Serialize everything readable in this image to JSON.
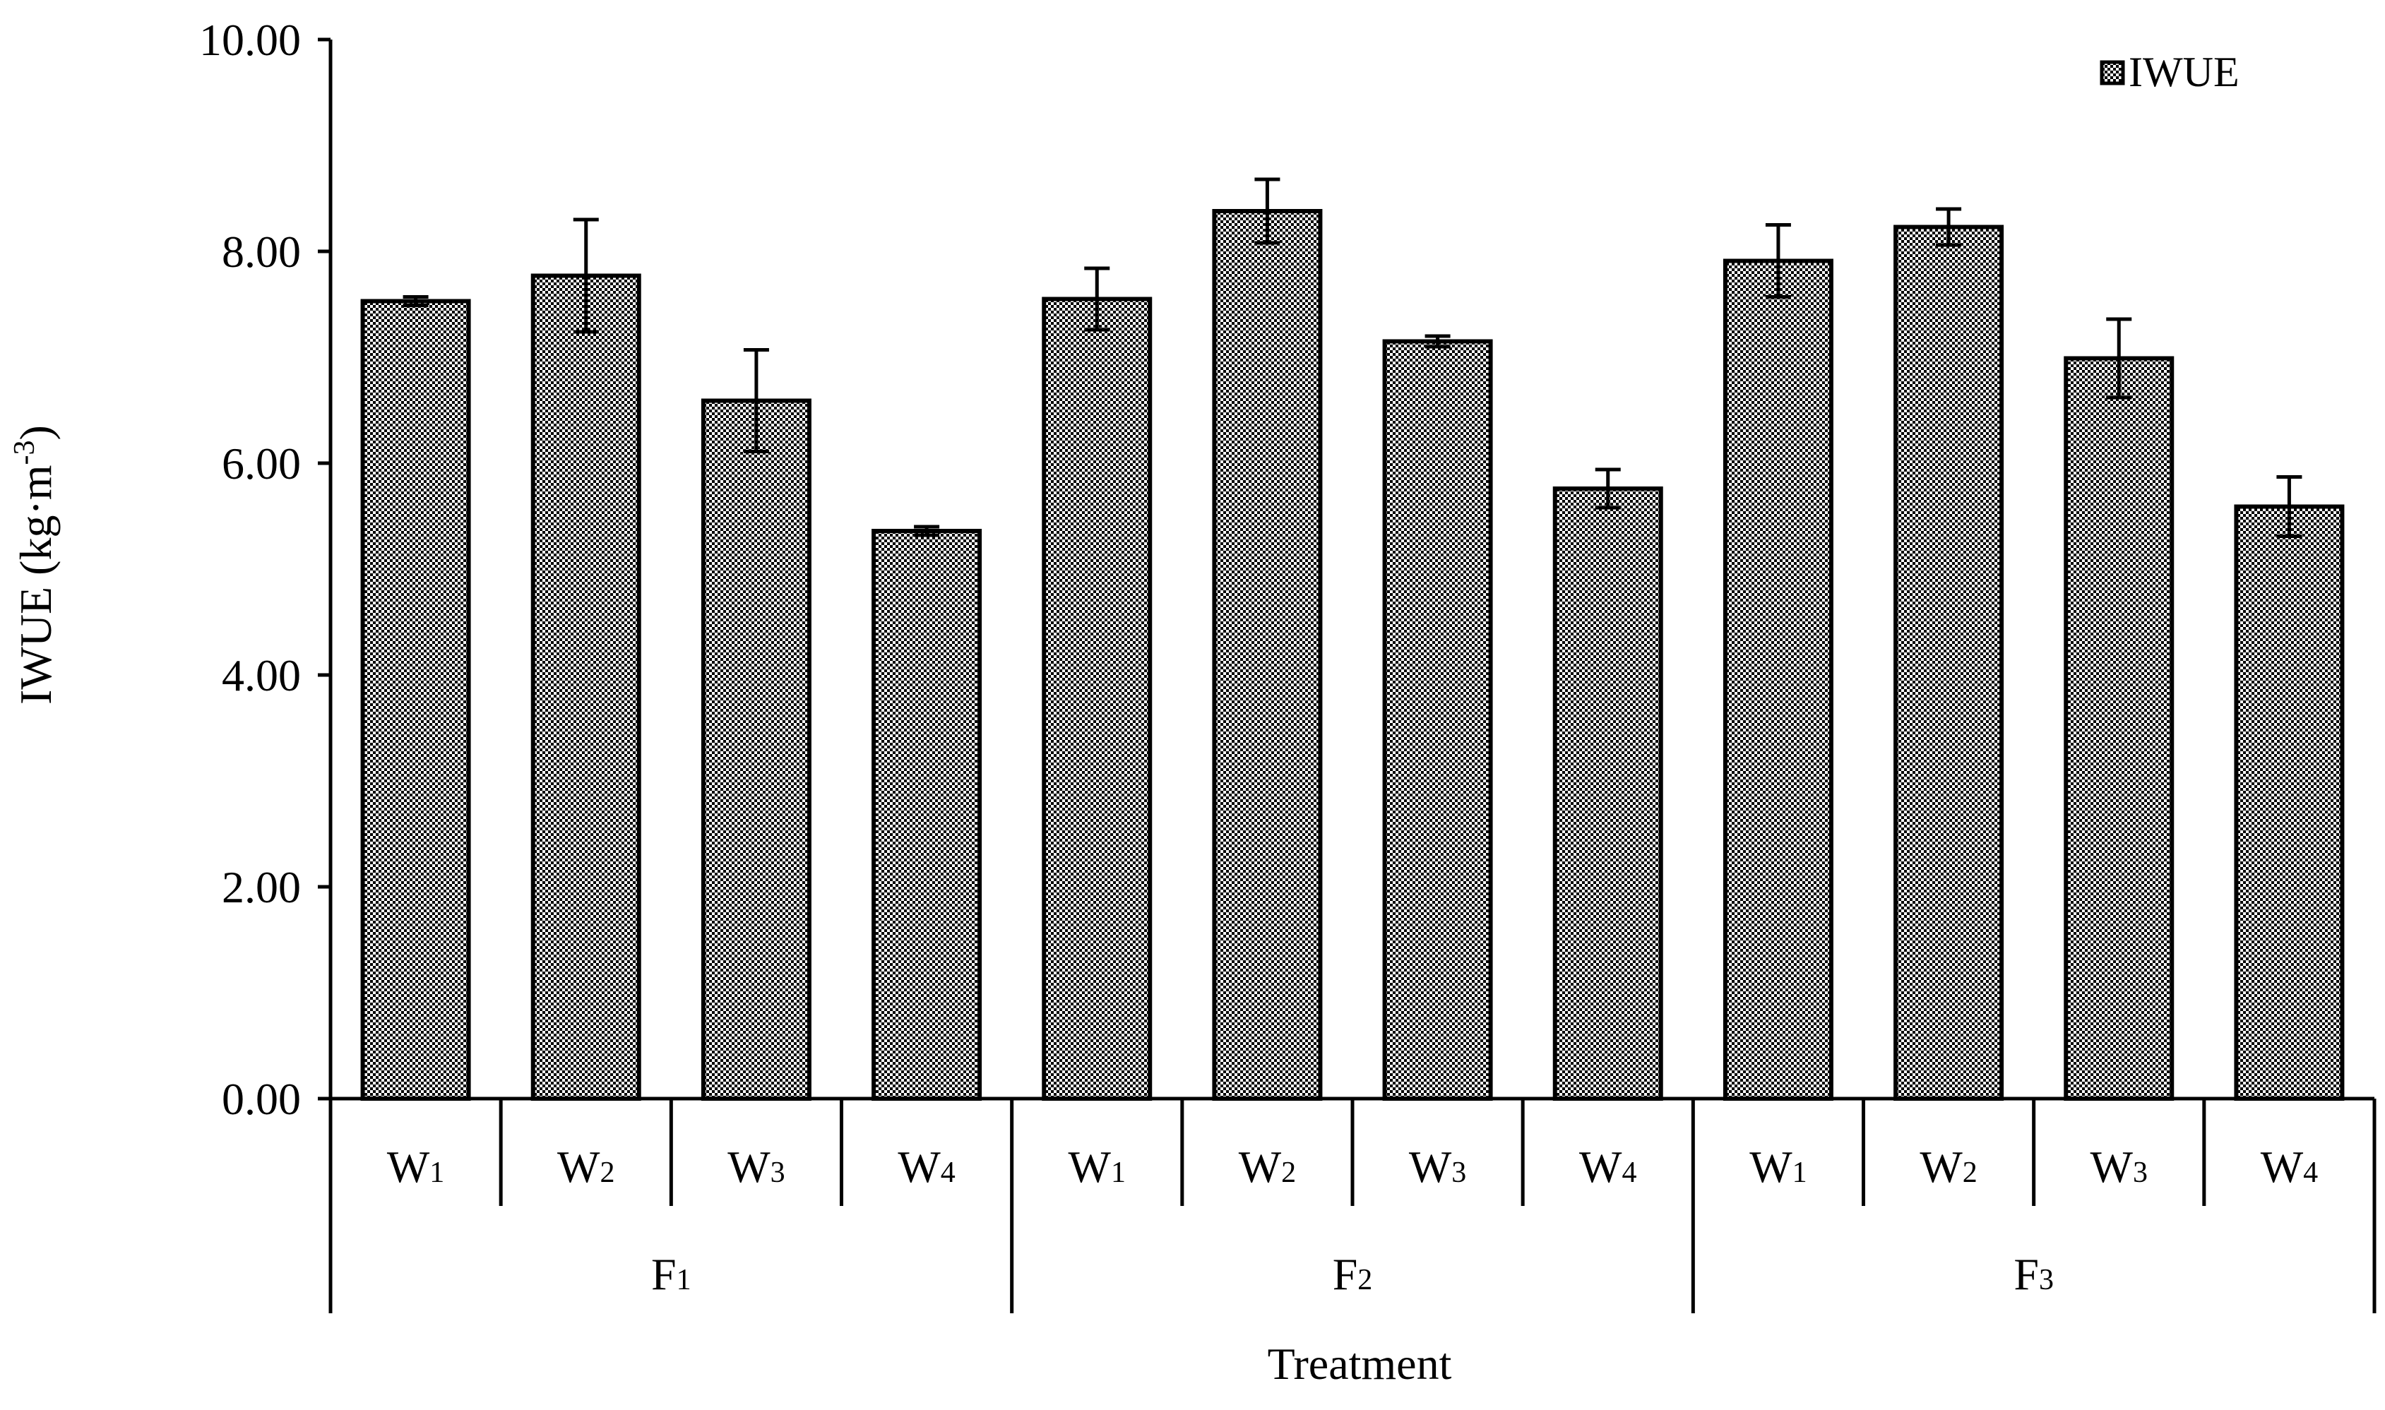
{
  "chart_data": {
    "type": "bar",
    "title": "",
    "xlabel": "Treatment",
    "ylabel": "IWUE (kg·m-3)",
    "ylabel_parts": {
      "main": "IWUE (kg·m",
      "sup": "-3",
      "close": ")"
    },
    "ylim": [
      0,
      10
    ],
    "yticks": [
      "0.00",
      "2.00",
      "4.00",
      "6.00",
      "8.00",
      "10.00"
    ],
    "ytick_values": [
      0,
      2,
      4,
      6,
      8,
      10
    ],
    "legend": {
      "label": "IWUE",
      "position": "top-right"
    },
    "groups": [
      {
        "label": "F",
        "sub": "1"
      },
      {
        "label": "F",
        "sub": "2"
      },
      {
        "label": "F",
        "sub": "3"
      }
    ],
    "categories": [
      {
        "label": "W",
        "sub": "1"
      },
      {
        "label": "W",
        "sub": "2"
      },
      {
        "label": "W",
        "sub": "3"
      },
      {
        "label": "W",
        "sub": "4"
      },
      {
        "label": "W",
        "sub": "1"
      },
      {
        "label": "W",
        "sub": "2"
      },
      {
        "label": "W",
        "sub": "3"
      },
      {
        "label": "W",
        "sub": "4"
      },
      {
        "label": "W",
        "sub": "1"
      },
      {
        "label": "W",
        "sub": "2"
      },
      {
        "label": "W",
        "sub": "3"
      },
      {
        "label": "W",
        "sub": "4"
      }
    ],
    "series": [
      {
        "name": "IWUE",
        "values": [
          7.53,
          7.77,
          6.59,
          5.36,
          7.55,
          8.38,
          7.15,
          5.76,
          7.91,
          8.23,
          6.99,
          5.59
        ],
        "errors": [
          0.04,
          0.53,
          0.48,
          0.04,
          0.29,
          0.3,
          0.05,
          0.18,
          0.34,
          0.17,
          0.37,
          0.28
        ]
      }
    ],
    "grid": false
  }
}
